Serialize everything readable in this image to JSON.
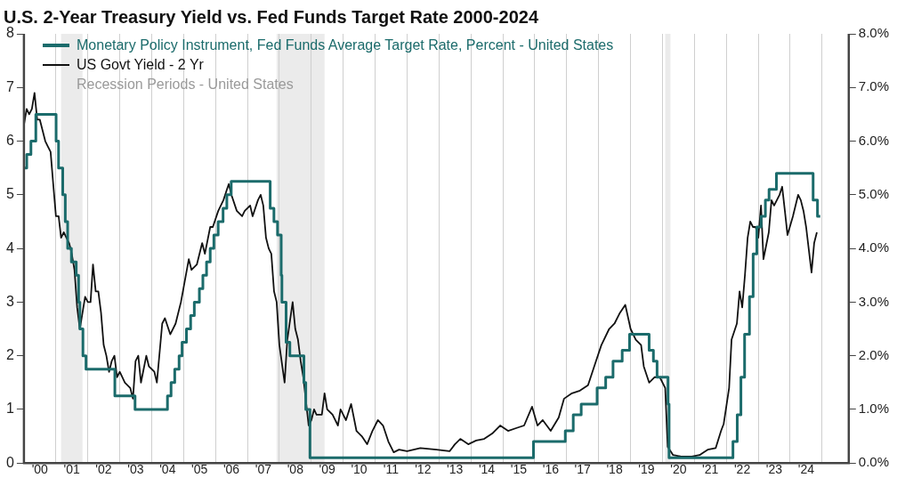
{
  "chart_data": {
    "type": "line",
    "title": "U.S. 2-Year Treasury Yield vs. Fed Funds Target Rate 2000-2024",
    "xlim": [
      "2000-01",
      "2025-11"
    ],
    "xticks": [
      {
        "value": "2000-07",
        "label": "'00"
      },
      {
        "value": "2001-01",
        "label": null
      },
      {
        "value": "2001-07",
        "label": "'01"
      },
      {
        "value": "2002-01",
        "label": null
      },
      {
        "value": "2002-07",
        "label": "'02"
      },
      {
        "value": "2003-01",
        "label": null
      },
      {
        "value": "2003-07",
        "label": "'03"
      },
      {
        "value": "2004-01",
        "label": null
      },
      {
        "value": "2004-07",
        "label": "'04"
      },
      {
        "value": "2005-01",
        "label": null
      },
      {
        "value": "2005-07",
        "label": "'05"
      },
      {
        "value": "2006-01",
        "label": null
      },
      {
        "value": "2006-07",
        "label": "'06"
      },
      {
        "value": "2007-01",
        "label": null
      },
      {
        "value": "2007-07",
        "label": "'07"
      },
      {
        "value": "2008-01",
        "label": null
      },
      {
        "value": "2008-07",
        "label": "'08"
      },
      {
        "value": "2009-01",
        "label": null
      },
      {
        "value": "2009-07",
        "label": "'09"
      },
      {
        "value": "2010-01",
        "label": null
      },
      {
        "value": "2010-07",
        "label": "'10"
      },
      {
        "value": "2011-01",
        "label": null
      },
      {
        "value": "2011-07",
        "label": "'11"
      },
      {
        "value": "2012-01",
        "label": null
      },
      {
        "value": "2012-07",
        "label": "'12"
      },
      {
        "value": "2013-01",
        "label": null
      },
      {
        "value": "2013-07",
        "label": "'13"
      },
      {
        "value": "2014-01",
        "label": null
      },
      {
        "value": "2014-07",
        "label": "'14"
      },
      {
        "value": "2015-01",
        "label": null
      },
      {
        "value": "2015-07",
        "label": "'15"
      },
      {
        "value": "2016-01",
        "label": null
      },
      {
        "value": "2016-07",
        "label": "'16"
      },
      {
        "value": "2017-01",
        "label": null
      },
      {
        "value": "2017-07",
        "label": "'17"
      },
      {
        "value": "2018-01",
        "label": null
      },
      {
        "value": "2018-07",
        "label": "'18"
      },
      {
        "value": "2019-01",
        "label": null
      },
      {
        "value": "2019-07",
        "label": "'19"
      },
      {
        "value": "2020-01",
        "label": null
      },
      {
        "value": "2020-07",
        "label": "'20"
      },
      {
        "value": "2021-01",
        "label": null
      },
      {
        "value": "2021-07",
        "label": "'21"
      },
      {
        "value": "2022-01",
        "label": null
      },
      {
        "value": "2022-07",
        "label": "'22"
      },
      {
        "value": "2023-01",
        "label": null
      },
      {
        "value": "2023-07",
        "label": "'23"
      },
      {
        "value": "2024-01",
        "label": null
      },
      {
        "value": "2024-07",
        "label": "'24"
      },
      {
        "value": "2025-01",
        "label": null
      }
    ],
    "ylim": [
      0,
      8
    ],
    "yticks": [
      0,
      1,
      2,
      3,
      4,
      5,
      6,
      7,
      8
    ],
    "y2lim": [
      0,
      8
    ],
    "y2ticks": [
      {
        "value": 0,
        "label": "0.0%"
      },
      {
        "value": 1,
        "label": "1.0%"
      },
      {
        "value": 2,
        "label": "2.0%"
      },
      {
        "value": 3,
        "label": "3.0%"
      },
      {
        "value": 4,
        "label": "4.0%"
      },
      {
        "value": 5,
        "label": "5.0%"
      },
      {
        "value": 6,
        "label": "6.0%"
      },
      {
        "value": 7,
        "label": "7.0%"
      },
      {
        "value": 8,
        "label": "8.0%"
      }
    ],
    "grid": "x",
    "legend": "top left",
    "marker": "none",
    "bands": [
      {
        "axis": "x",
        "from": "2001-03",
        "to": "2001-11",
        "label": "Recession Periods - United States",
        "color": "#ebebeb"
      },
      {
        "axis": "x",
        "from": "2007-12",
        "to": "2009-06",
        "color": "#ebebeb"
      },
      {
        "axis": "x",
        "from": "2020-02",
        "to": "2020-04",
        "color": "#ebebeb"
      }
    ],
    "series": [
      {
        "name": "Monetary Policy Instrument, Fed Funds Average Target Rate, Percent - United States",
        "type": "step",
        "color": "#1b6b6b",
        "x": [
          "2000-01",
          "2000-02-02",
          "2000-03-21",
          "2000-05-16",
          "2001-01-03",
          "2001-01-31",
          "2001-03-20",
          "2001-04-18",
          "2001-05-15",
          "2001-06-27",
          "2001-08-21",
          "2001-09-17",
          "2001-10-02",
          "2001-11-06",
          "2001-12-11",
          "2002-11-06",
          "2003-06-25",
          "2004-06-30",
          "2004-08-10",
          "2004-09-21",
          "2004-11-10",
          "2004-12-14",
          "2005-02-02",
          "2005-03-22",
          "2005-05-03",
          "2005-06-30",
          "2005-08-09",
          "2005-09-20",
          "2005-11-01",
          "2005-12-13",
          "2006-01-31",
          "2006-03-28",
          "2006-05-10",
          "2006-06-29",
          "2007-09-18",
          "2007-10-31",
          "2007-12-11",
          "2008-01-22",
          "2008-01-30",
          "2008-03-18",
          "2008-04-30",
          "2008-10-08",
          "2008-10-29",
          "2008-12-16",
          "2015-12-17",
          "2016-12-15",
          "2017-03-16",
          "2017-06-15",
          "2017-12-14",
          "2018-03-22",
          "2018-06-14",
          "2018-09-27",
          "2018-12-20",
          "2019-08-01",
          "2019-09-19",
          "2019-10-31",
          "2020-03-04",
          "2020-03-16",
          "2022-03-17",
          "2022-05-05",
          "2022-06-16",
          "2022-07-28",
          "2022-09-22",
          "2022-11-03",
          "2022-12-15",
          "2023-02-02",
          "2023-03-23",
          "2023-05-04",
          "2023-07-27",
          "2024-09-19",
          "2024-11-08",
          "2024-12-10"
        ],
        "values": [
          5.5,
          5.75,
          6.0,
          6.5,
          6.0,
          5.5,
          5.0,
          4.5,
          4.0,
          3.75,
          3.5,
          3.0,
          2.5,
          2.0,
          1.75,
          1.25,
          1.0,
          1.25,
          1.5,
          1.75,
          2.0,
          2.25,
          2.5,
          2.75,
          3.0,
          3.25,
          3.5,
          3.75,
          4.0,
          4.25,
          4.5,
          4.75,
          5.0,
          5.25,
          4.75,
          4.5,
          4.25,
          3.5,
          3.0,
          2.25,
          2.0,
          1.5,
          1.0,
          0.1,
          0.4,
          0.6,
          0.9,
          1.1,
          1.4,
          1.6,
          1.9,
          2.1,
          2.4,
          2.1,
          1.9,
          1.6,
          1.1,
          0.1,
          0.4,
          0.9,
          1.6,
          2.4,
          3.1,
          3.9,
          4.4,
          4.6,
          4.9,
          5.1,
          5.4,
          4.9,
          4.6,
          4.6
        ]
      },
      {
        "name": "US Govt Yield - 2 Yr",
        "type": "line",
        "color": "#111111",
        "x": [
          "2000-01",
          "2000-02",
          "2000-03",
          "2000-04",
          "2000-05",
          "2000-06",
          "2000-07",
          "2000-08",
          "2000-09",
          "2000-10",
          "2000-11",
          "2000-12",
          "2001-01",
          "2001-02",
          "2001-03",
          "2001-04",
          "2001-05",
          "2001-06",
          "2001-07",
          "2001-08",
          "2001-09",
          "2001-10",
          "2001-11",
          "2001-12",
          "2002-01",
          "2002-02",
          "2002-03",
          "2002-04",
          "2002-05",
          "2002-06",
          "2002-07",
          "2002-08",
          "2002-09",
          "2002-10",
          "2002-11",
          "2002-12",
          "2003-01",
          "2003-03",
          "2003-05",
          "2003-06",
          "2003-07",
          "2003-08",
          "2003-09",
          "2003-11",
          "2003-12",
          "2004-02",
          "2004-03",
          "2004-05",
          "2004-06",
          "2004-08",
          "2004-10",
          "2004-12",
          "2005-03",
          "2005-04",
          "2005-06",
          "2005-08",
          "2005-09",
          "2005-11",
          "2005-12",
          "2006-02",
          "2006-04",
          "2006-06",
          "2006-07",
          "2006-09",
          "2006-11",
          "2006-12",
          "2007-02",
          "2007-03",
          "2007-05",
          "2007-06",
          "2007-07",
          "2007-08",
          "2007-09",
          "2007-10",
          "2007-11",
          "2007-12",
          "2008-01",
          "2008-03",
          "2008-04",
          "2008-06",
          "2008-07",
          "2008-08",
          "2008-09",
          "2008-10",
          "2008-12",
          "2009-01",
          "2009-02",
          "2009-03",
          "2009-05",
          "2009-06",
          "2009-07",
          "2009-09",
          "2009-11",
          "2009-12",
          "2010-02",
          "2010-04",
          "2010-06",
          "2010-08",
          "2010-10",
          "2010-12",
          "2011-02",
          "2011-04",
          "2011-06",
          "2011-08",
          "2011-10",
          "2012-01",
          "2012-06",
          "2012-12",
          "2013-05",
          "2013-07",
          "2013-09",
          "2013-12",
          "2014-03",
          "2014-06",
          "2014-09",
          "2014-12",
          "2015-03",
          "2015-06",
          "2015-09",
          "2015-12",
          "2016-02",
          "2016-04",
          "2016-07",
          "2016-10",
          "2016-12",
          "2017-03",
          "2017-06",
          "2017-09",
          "2017-12",
          "2018-02",
          "2018-05",
          "2018-07",
          "2018-09",
          "2018-11",
          "2019-01",
          "2019-03",
          "2019-05",
          "2019-06",
          "2019-08",
          "2019-10",
          "2019-12",
          "2020-02",
          "2020-03",
          "2020-05",
          "2020-08",
          "2020-12",
          "2021-03",
          "2021-06",
          "2021-09",
          "2021-11",
          "2021-12",
          "2022-02",
          "2022-03",
          "2022-05",
          "2022-06",
          "2022-07",
          "2022-08",
          "2022-09",
          "2022-10",
          "2022-11",
          "2022-12",
          "2023-01",
          "2023-02",
          "2023-03",
          "2023-05",
          "2023-06",
          "2023-07",
          "2023-09",
          "2023-10",
          "2023-11",
          "2023-12",
          "2024-02",
          "2024-04",
          "2024-05",
          "2024-06",
          "2024-07",
          "2024-09",
          "2024-10",
          "2024-11"
        ],
        "values": [
          6.3,
          6.6,
          6.5,
          6.6,
          6.9,
          6.4,
          6.4,
          6.2,
          6.0,
          5.9,
          5.8,
          5.2,
          4.6,
          4.6,
          4.2,
          4.3,
          4.2,
          4.1,
          3.9,
          3.6,
          2.9,
          2.5,
          2.8,
          3.1,
          3.0,
          3.0,
          3.7,
          3.2,
          3.2,
          2.8,
          2.2,
          2.0,
          1.7,
          1.9,
          2.0,
          1.6,
          1.7,
          1.5,
          1.4,
          1.2,
          1.9,
          2.0,
          1.5,
          2.0,
          1.8,
          1.7,
          1.5,
          2.6,
          2.7,
          2.4,
          2.6,
          3.0,
          3.8,
          3.6,
          3.7,
          4.1,
          3.9,
          4.4,
          4.4,
          4.7,
          4.9,
          5.2,
          5.0,
          4.7,
          4.6,
          4.7,
          4.8,
          4.6,
          4.9,
          5.0,
          4.8,
          4.2,
          4.0,
          3.9,
          3.2,
          3.0,
          2.2,
          1.5,
          2.3,
          3.0,
          2.5,
          2.3,
          1.9,
          1.6,
          0.7,
          0.8,
          1.0,
          0.9,
          0.9,
          1.3,
          1.0,
          0.9,
          0.7,
          1.0,
          0.8,
          1.1,
          0.6,
          0.5,
          0.35,
          0.6,
          0.8,
          0.7,
          0.4,
          0.2,
          0.25,
          0.22,
          0.28,
          0.25,
          0.22,
          0.35,
          0.45,
          0.35,
          0.42,
          0.45,
          0.55,
          0.7,
          0.6,
          0.65,
          0.7,
          1.05,
          0.7,
          0.8,
          0.6,
          0.85,
          1.2,
          1.3,
          1.35,
          1.45,
          1.9,
          2.2,
          2.5,
          2.6,
          2.8,
          2.95,
          2.5,
          2.3,
          2.2,
          1.8,
          1.5,
          1.6,
          1.6,
          1.4,
          0.3,
          0.15,
          0.12,
          0.12,
          0.15,
          0.25,
          0.28,
          0.6,
          0.73,
          1.4,
          2.3,
          2.6,
          3.2,
          2.9,
          3.5,
          4.2,
          4.5,
          4.4,
          4.4,
          4.2,
          4.8,
          3.8,
          4.3,
          4.9,
          4.8,
          5.0,
          5.15,
          4.7,
          4.25,
          4.6,
          5.0,
          4.9,
          4.7,
          4.4,
          3.55,
          4.1,
          4.3
        ]
      }
    ]
  }
}
